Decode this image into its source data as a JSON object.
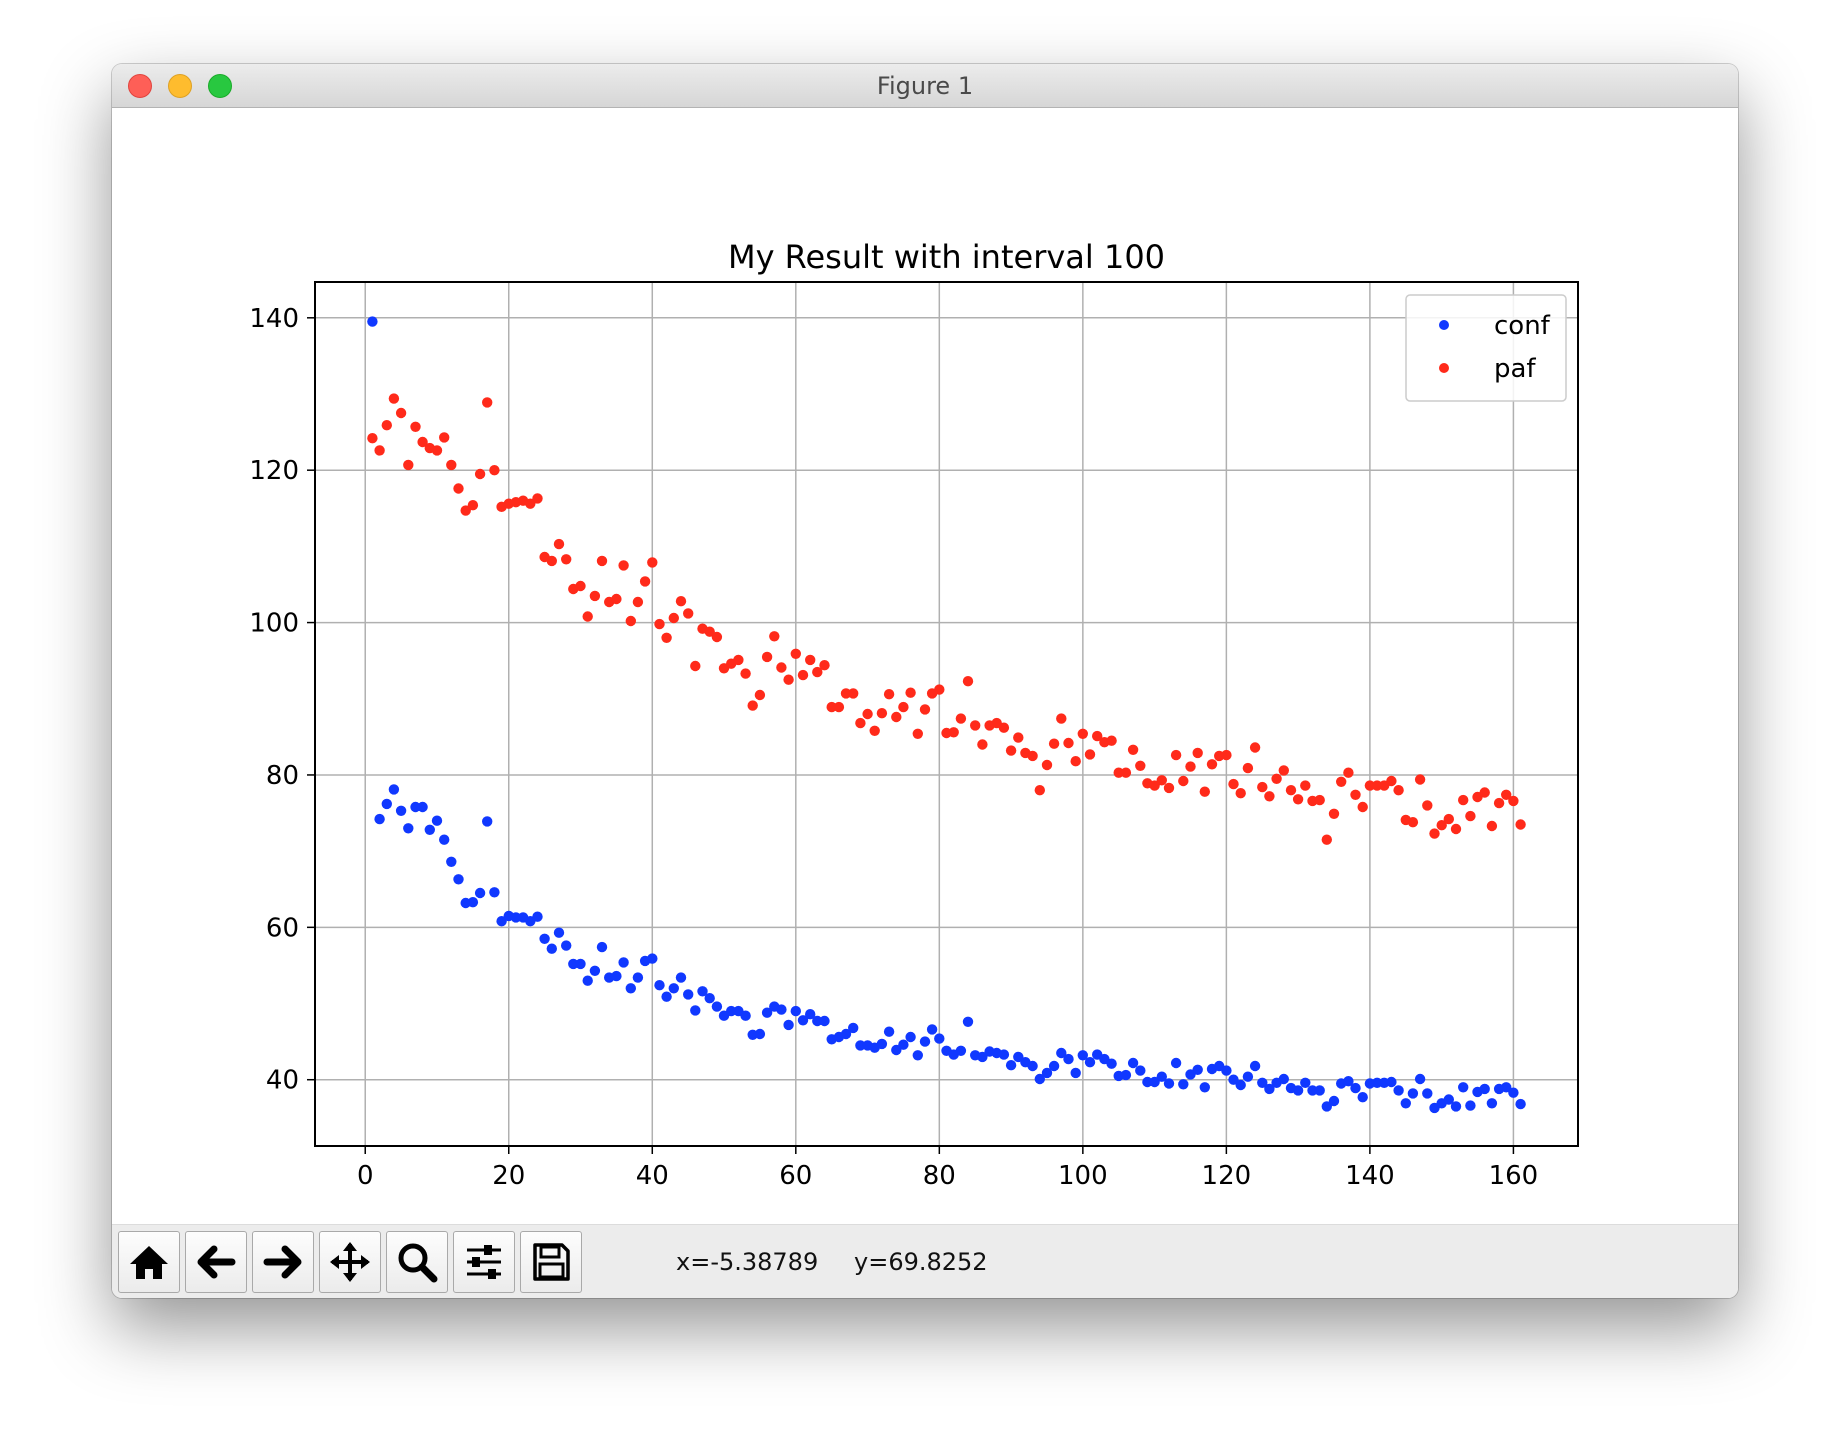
{
  "window": {
    "title": "Figure 1"
  },
  "toolbar": {
    "buttons": [
      {
        "name": "home-button",
        "icon": "home-icon"
      },
      {
        "name": "back-button",
        "icon": "arrow-left-icon"
      },
      {
        "name": "forward-button",
        "icon": "arrow-right-icon"
      },
      {
        "name": "pan-button",
        "icon": "move-icon"
      },
      {
        "name": "zoom-button",
        "icon": "magnifier-icon"
      },
      {
        "name": "subplots-button",
        "icon": "sliders-icon"
      },
      {
        "name": "save-button",
        "icon": "floppy-disk-icon"
      }
    ],
    "x_readout": "x=-5.38789",
    "y_readout": "y=69.8252"
  },
  "chart_data": {
    "type": "scatter",
    "title": "My Result with interval 100",
    "xlabel": "",
    "ylabel": "",
    "xlim": [
      -7,
      169
    ],
    "ylim": [
      31.3,
      144.7
    ],
    "xticks": [
      0,
      20,
      40,
      60,
      80,
      100,
      120,
      140,
      160
    ],
    "yticks": [
      40,
      60,
      80,
      100,
      120,
      140
    ],
    "grid": true,
    "legend_position": "top-right",
    "series": [
      {
        "name": "conf",
        "color": "#1038ff",
        "x": [
          1,
          2,
          3,
          4,
          5,
          6,
          7,
          8,
          9,
          10,
          11,
          12,
          13,
          14,
          15,
          16,
          17,
          18,
          19,
          20,
          21,
          22,
          23,
          24,
          25,
          26,
          27,
          28,
          29,
          30,
          31,
          32,
          33,
          34,
          35,
          36,
          37,
          38,
          39,
          40,
          41,
          42,
          43,
          44,
          45,
          46,
          47,
          48,
          49,
          50,
          51,
          52,
          53,
          54,
          55,
          56,
          57,
          58,
          59,
          60,
          61,
          62,
          63,
          64,
          65,
          66,
          67,
          68,
          69,
          70,
          71,
          72,
          73,
          74,
          75,
          76,
          77,
          78,
          79,
          80,
          81,
          82,
          83,
          84,
          85,
          86,
          87,
          88,
          89,
          90,
          91,
          92,
          93,
          94,
          95,
          96,
          97,
          98,
          99,
          100,
          101,
          102,
          103,
          104,
          105,
          106,
          107,
          108,
          109,
          110,
          111,
          112,
          113,
          114,
          115,
          116,
          117,
          118,
          119,
          120,
          121,
          122,
          123,
          124,
          125,
          126,
          127,
          128,
          129,
          130,
          131,
          132,
          133,
          134,
          135,
          136,
          137,
          138,
          139,
          140,
          141,
          142,
          143,
          144,
          145,
          146,
          147,
          148,
          149,
          150,
          151,
          152,
          153,
          154,
          155,
          156,
          157,
          158,
          159,
          160,
          161
        ],
        "y": [
          139.5,
          74.2,
          76.2,
          78.1,
          75.3,
          73.0,
          75.8,
          75.8,
          72.8,
          74.0,
          71.5,
          68.6,
          66.3,
          63.2,
          63.3,
          64.5,
          73.9,
          64.6,
          60.8,
          61.5,
          61.3,
          61.3,
          60.8,
          61.4,
          58.5,
          57.2,
          59.3,
          57.6,
          55.2,
          55.2,
          53.0,
          54.3,
          57.4,
          53.4,
          53.6,
          55.4,
          52.0,
          53.4,
          55.6,
          55.9,
          52.4,
          50.9,
          52.0,
          53.4,
          51.2,
          49.1,
          51.6,
          50.7,
          49.6,
          48.4,
          49.0,
          49.0,
          48.4,
          45.9,
          46.0,
          48.8,
          49.6,
          49.2,
          47.2,
          49.0,
          47.8,
          48.6,
          47.7,
          47.7,
          45.3,
          45.6,
          46.0,
          46.8,
          44.5,
          44.5,
          44.2,
          44.7,
          46.3,
          43.9,
          44.6,
          45.6,
          43.2,
          45.0,
          46.6,
          45.4,
          43.8,
          43.3,
          43.8,
          47.6,
          43.2,
          43.0,
          43.7,
          43.5,
          43.3,
          41.9,
          43.0,
          42.3,
          41.8,
          40.1,
          40.9,
          41.8,
          43.5,
          42.7,
          40.9,
          43.2,
          42.3,
          43.3,
          42.7,
          42.1,
          40.5,
          40.6,
          42.2,
          41.2,
          39.7,
          39.7,
          40.4,
          39.5,
          42.2,
          39.4,
          40.7,
          41.3,
          39.0,
          41.4,
          41.8,
          41.2,
          40.0,
          39.3,
          40.4,
          41.8,
          39.6,
          38.8,
          39.6,
          40.1,
          38.9,
          38.6,
          39.6,
          38.6,
          38.6,
          36.5,
          37.2,
          39.5,
          39.8,
          38.9,
          37.7,
          39.5,
          39.6,
          39.6,
          39.7,
          38.6,
          36.9,
          38.2,
          40.1,
          38.2,
          36.3,
          36.9,
          37.4,
          36.5,
          39.0,
          36.6,
          38.4,
          38.8,
          36.9,
          38.8,
          39.0,
          38.3,
          36.8
        ]
      },
      {
        "name": "paf",
        "color": "#ff2a1a",
        "x": [
          1,
          2,
          3,
          4,
          5,
          6,
          7,
          8,
          9,
          10,
          11,
          12,
          13,
          14,
          15,
          16,
          17,
          18,
          19,
          20,
          21,
          22,
          23,
          24,
          25,
          26,
          27,
          28,
          29,
          30,
          31,
          32,
          33,
          34,
          35,
          36,
          37,
          38,
          39,
          40,
          41,
          42,
          43,
          44,
          45,
          46,
          47,
          48,
          49,
          50,
          51,
          52,
          53,
          54,
          55,
          56,
          57,
          58,
          59,
          60,
          61,
          62,
          63,
          64,
          65,
          66,
          67,
          68,
          69,
          70,
          71,
          72,
          73,
          74,
          75,
          76,
          77,
          78,
          79,
          80,
          81,
          82,
          83,
          84,
          85,
          86,
          87,
          88,
          89,
          90,
          91,
          92,
          93,
          94,
          95,
          96,
          97,
          98,
          99,
          100,
          101,
          102,
          103,
          104,
          105,
          106,
          107,
          108,
          109,
          110,
          111,
          112,
          113,
          114,
          115,
          116,
          117,
          118,
          119,
          120,
          121,
          122,
          123,
          124,
          125,
          126,
          127,
          128,
          129,
          130,
          131,
          132,
          133,
          134,
          135,
          136,
          137,
          138,
          139,
          140,
          141,
          142,
          143,
          144,
          145,
          146,
          147,
          148,
          149,
          150,
          151,
          152,
          153,
          154,
          155,
          156,
          157,
          158,
          159,
          160,
          161
        ],
        "y": [
          124.2,
          122.6,
          125.9,
          129.4,
          127.5,
          120.7,
          125.7,
          123.7,
          122.9,
          122.6,
          124.3,
          120.7,
          117.6,
          114.7,
          115.4,
          119.5,
          128.9,
          120.0,
          115.2,
          115.6,
          115.8,
          116.0,
          115.6,
          116.3,
          108.6,
          108.1,
          110.3,
          108.3,
          104.4,
          104.8,
          100.8,
          103.5,
          108.1,
          102.7,
          103.1,
          107.5,
          100.2,
          102.7,
          105.4,
          107.9,
          99.8,
          98.0,
          100.6,
          102.8,
          101.2,
          94.3,
          99.2,
          98.8,
          98.1,
          94.0,
          94.6,
          95.1,
          93.3,
          89.1,
          90.5,
          95.5,
          98.2,
          94.1,
          92.5,
          95.9,
          93.1,
          95.1,
          93.5,
          94.4,
          88.9,
          88.9,
          90.7,
          90.7,
          86.8,
          88.0,
          85.8,
          88.1,
          90.6,
          87.6,
          88.9,
          90.8,
          85.4,
          88.6,
          90.7,
          91.2,
          85.5,
          85.6,
          87.4,
          92.3,
          86.5,
          84.0,
          86.5,
          86.8,
          86.2,
          83.2,
          84.9,
          82.9,
          82.5,
          78.0,
          81.3,
          84.1,
          87.4,
          84.2,
          81.8,
          85.4,
          82.7,
          85.1,
          84.3,
          84.5,
          80.3,
          80.3,
          83.3,
          81.2,
          78.9,
          78.6,
          79.3,
          78.3,
          82.6,
          79.2,
          81.1,
          82.9,
          77.8,
          81.4,
          82.5,
          82.6,
          78.8,
          77.6,
          80.9,
          83.6,
          78.4,
          77.2,
          79.5,
          80.6,
          78.0,
          76.8,
          78.6,
          76.6,
          76.7,
          71.5,
          74.9,
          79.1,
          80.3,
          77.4,
          75.8,
          78.6,
          78.6,
          78.6,
          79.2,
          78.0,
          74.1,
          73.8,
          79.4,
          76.0,
          72.3,
          73.4,
          74.2,
          72.9,
          76.7,
          74.6,
          77.1,
          77.7,
          73.3,
          76.3,
          77.4,
          76.6,
          73.5
        ]
      }
    ]
  }
}
